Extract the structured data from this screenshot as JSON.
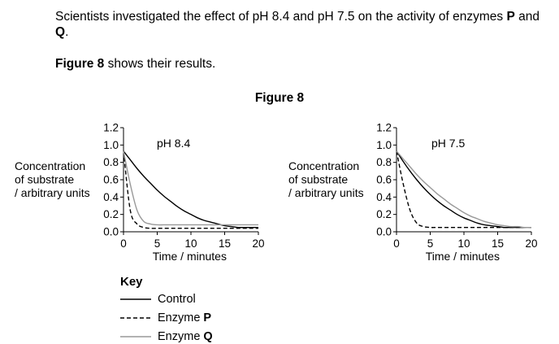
{
  "intro": {
    "text_pre": "Scientists investigated the effect of pH 8.4 and pH 7.5 on the activity of enzymes ",
    "enzyme_p": "P",
    "and": " and ",
    "enzyme_q": "Q",
    "end": "."
  },
  "figure_ref": {
    "bold": "Figure 8",
    "rest": " shows their results."
  },
  "figure_title": "Figure 8",
  "key": {
    "title": "Key",
    "control": "Control",
    "enzyme_prefix": "Enzyme ",
    "p": "P",
    "q": "Q"
  },
  "colors": {
    "control": "#000000",
    "enzyme_p": "#000000",
    "enzyme_q": "#999999"
  },
  "chart_data": [
    {
      "type": "line",
      "title": "pH 8.4",
      "xlabel": "Time / minutes",
      "ylabel": [
        "Concentration",
        "of substrate",
        "/ arbitrary units"
      ],
      "xlim": [
        0,
        20
      ],
      "ylim": [
        0,
        1.2
      ],
      "xticks": [
        0,
        5,
        10,
        15,
        20
      ],
      "yticks": [
        "0.0",
        "0.2",
        "0.4",
        "0.6",
        "0.8",
        "1.0",
        "1.2"
      ],
      "x": [
        0,
        1,
        2,
        3,
        4,
        5,
        6,
        7,
        8,
        9,
        10,
        11,
        12,
        13,
        14,
        15,
        16,
        17,
        18,
        19,
        20
      ],
      "series": [
        {
          "key": "control",
          "style": "solid",
          "values": [
            0.93,
            0.83,
            0.73,
            0.64,
            0.56,
            0.48,
            0.41,
            0.35,
            0.29,
            0.24,
            0.2,
            0.16,
            0.13,
            0.11,
            0.09,
            0.07,
            0.06,
            0.05,
            0.05,
            0.05,
            0.05
          ]
        },
        {
          "key": "enzyme_p",
          "style": "dashed",
          "values": [
            0.93,
            0.25,
            0.09,
            0.05,
            0.04,
            0.04,
            0.04,
            0.04,
            0.04,
            0.04,
            0.04,
            0.04,
            0.04,
            0.04,
            0.04,
            0.04,
            0.04,
            0.04,
            0.04,
            0.04,
            0.04
          ]
        },
        {
          "key": "enzyme_q",
          "style": "solid-grey",
          "values": [
            0.93,
            0.55,
            0.25,
            0.12,
            0.09,
            0.08,
            0.08,
            0.08,
            0.08,
            0.08,
            0.08,
            0.08,
            0.08,
            0.08,
            0.08,
            0.08,
            0.08,
            0.08,
            0.08,
            0.08,
            0.08
          ]
        }
      ]
    },
    {
      "type": "line",
      "title": "pH 7.5",
      "xlabel": "Time / minutes",
      "ylabel": [
        "Concentration",
        "of substrate",
        "/ arbitrary units"
      ],
      "xlim": [
        0,
        20
      ],
      "ylim": [
        0,
        1.2
      ],
      "xticks": [
        0,
        5,
        10,
        15,
        20
      ],
      "yticks": [
        "0.0",
        "0.2",
        "0.4",
        "0.6",
        "0.8",
        "1.0",
        "1.2"
      ],
      "x": [
        0,
        1,
        2,
        3,
        4,
        5,
        6,
        7,
        8,
        9,
        10,
        11,
        12,
        13,
        14,
        15,
        16,
        17,
        18,
        19,
        20
      ],
      "series": [
        {
          "key": "control",
          "style": "solid",
          "values": [
            0.93,
            0.81,
            0.7,
            0.6,
            0.51,
            0.43,
            0.36,
            0.3,
            0.25,
            0.2,
            0.16,
            0.13,
            0.1,
            0.08,
            0.07,
            0.06,
            0.05,
            0.05,
            0.05,
            0.05,
            0.05
          ]
        },
        {
          "key": "enzyme_p",
          "style": "dashed",
          "values": [
            0.93,
            0.55,
            0.25,
            0.1,
            0.06,
            0.05,
            0.05,
            0.05,
            0.05,
            0.05,
            0.05,
            0.05,
            0.05,
            0.05,
            0.05,
            0.05,
            0.05,
            0.05,
            0.05,
            0.05,
            0.05
          ]
        },
        {
          "key": "enzyme_q",
          "style": "solid-grey",
          "values": [
            0.93,
            0.84,
            0.75,
            0.66,
            0.58,
            0.51,
            0.44,
            0.38,
            0.32,
            0.27,
            0.22,
            0.18,
            0.15,
            0.12,
            0.1,
            0.08,
            0.07,
            0.06,
            0.06,
            0.05,
            0.05
          ]
        }
      ]
    }
  ]
}
